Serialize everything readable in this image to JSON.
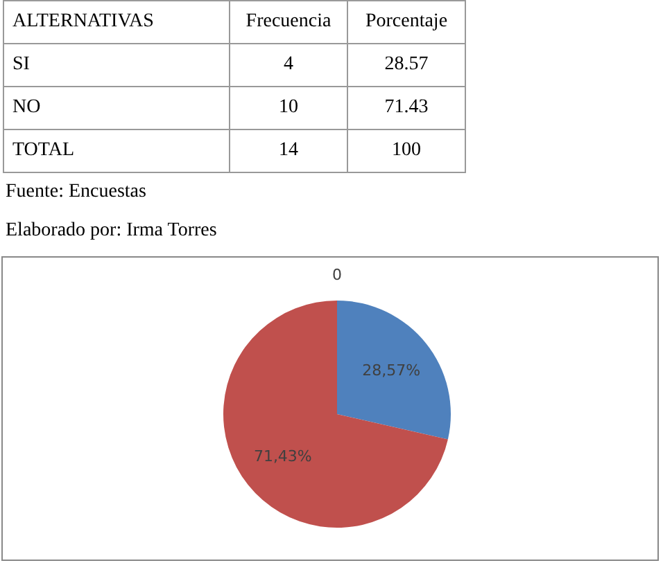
{
  "chart_data": [
    {
      "type": "other",
      "annotations": [
        "ALTERNATIVAS",
        "Frecuencia",
        "Porcentaje",
        "SI",
        "4",
        "28.57",
        "NO",
        "10",
        "71.43",
        "TOTAL",
        "14",
        "100"
      ]
    },
    {
      "type": "pie",
      "annotations": [
        "Fuente: Encuestas",
        "Elaborado por: Irma Torres"
      ],
      "categories": [
        null,
        null,
        null
      ],
      "values": [
        28.57,
        71.43,
        0
      ],
      "colors": [
        "#4f81bd",
        "#c0504d",
        "#9bbb59"
      ],
      "value_labels": [
        "28,57%",
        "71,43%",
        "0"
      ],
      "legend": false
    }
  ]
}
